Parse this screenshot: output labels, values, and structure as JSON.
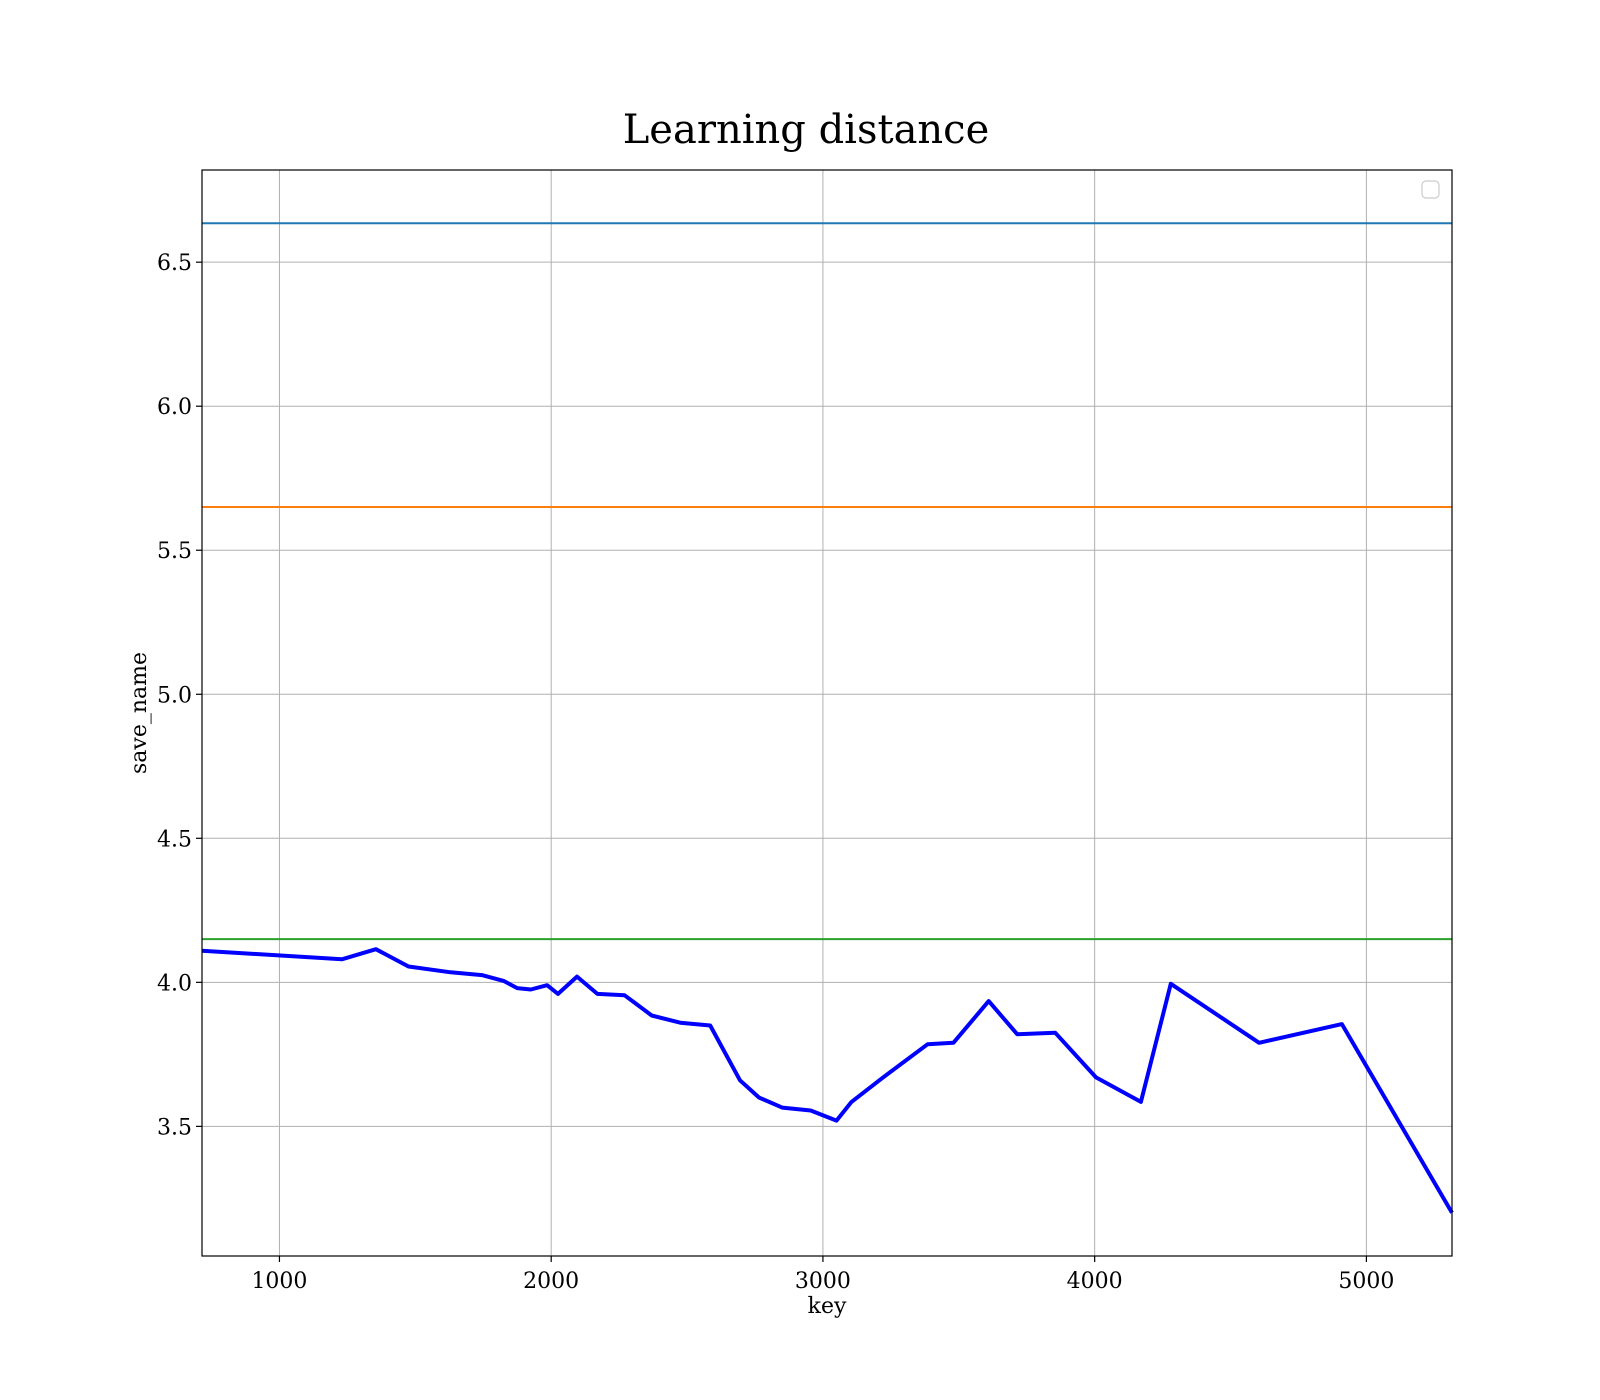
{
  "chart_data": {
    "type": "line",
    "title": "Learning distance",
    "xlabel": "key",
    "ylabel": "save_name",
    "xlim": [
      715,
      5315
    ],
    "ylim": [
      3.05,
      6.82
    ],
    "grid": true,
    "legend": {
      "placement": "top-right",
      "entries": []
    },
    "x_ticks": [
      1000,
      2000,
      3000,
      4000,
      5000
    ],
    "x_tick_labels": [
      "1000",
      "2000",
      "3000",
      "4000",
      "5000"
    ],
    "y_ticks": [
      3.5,
      4.0,
      4.5,
      5.0,
      5.5,
      6.0,
      6.5
    ],
    "y_tick_labels": [
      "3.5",
      "4.0",
      "4.5",
      "5.0",
      "5.5",
      "6.0",
      "6.5"
    ],
    "hlines": [
      {
        "y": 6.635,
        "color": "#1f77b4"
      },
      {
        "y": 5.65,
        "color": "#ff7f0e"
      },
      {
        "y": 4.15,
        "color": "#2ca02c"
      }
    ],
    "series": [
      {
        "color": "#0000ff",
        "x": [
          715,
          1230,
          1355,
          1475,
          1630,
          1745,
          1825,
          1875,
          1925,
          1985,
          2025,
          2095,
          2170,
          2270,
          2370,
          2475,
          2585,
          2695,
          2765,
          2850,
          2955,
          3050,
          3105,
          3215,
          3385,
          3480,
          3610,
          3715,
          3855,
          4005,
          4170,
          4280,
          4605,
          4910,
          5315
        ],
        "y": [
          4.11,
          4.08,
          4.115,
          4.055,
          4.035,
          4.025,
          4.005,
          3.98,
          3.975,
          3.99,
          3.96,
          4.02,
          3.96,
          3.955,
          3.885,
          3.86,
          3.85,
          3.66,
          3.6,
          3.565,
          3.555,
          3.52,
          3.585,
          3.665,
          3.785,
          3.79,
          3.935,
          3.82,
          3.825,
          3.67,
          3.585,
          3.995,
          3.79,
          3.855,
          3.2
        ]
      }
    ]
  }
}
